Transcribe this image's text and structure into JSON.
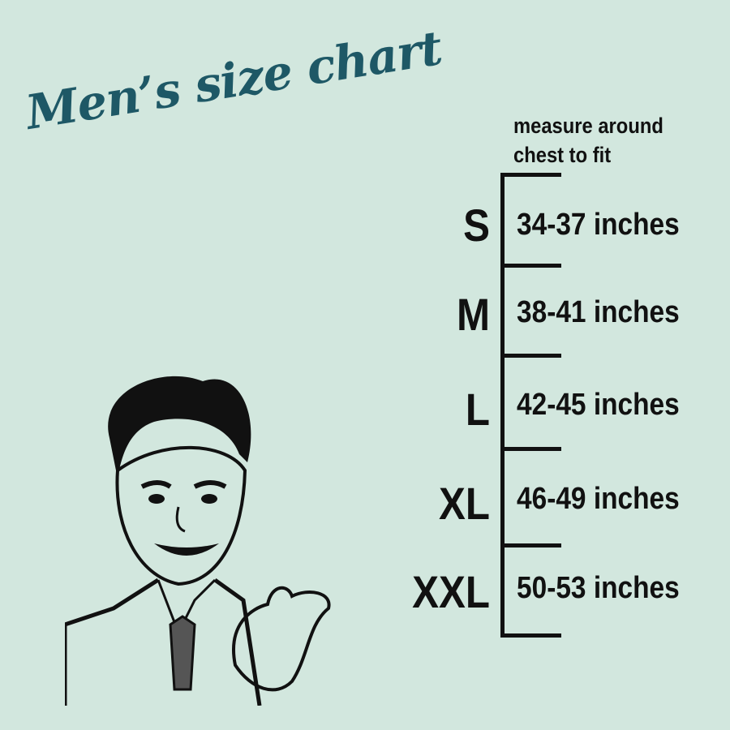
{
  "title": "Men’s size chart",
  "instruction": {
    "line1": "measure around",
    "line2": "chest to fit"
  },
  "sizes": [
    {
      "label": "S",
      "range": "34-37 inches"
    },
    {
      "label": "M",
      "range": "38-41 inches"
    },
    {
      "label": "L",
      "range": "42-45 inches"
    },
    {
      "label": "XL",
      "range": "46-49 inches"
    },
    {
      "label": "XXL",
      "range": "50-53 inches"
    }
  ],
  "colors": {
    "background": "#d2e7de",
    "title": "#1e5866",
    "text": "#111111"
  }
}
